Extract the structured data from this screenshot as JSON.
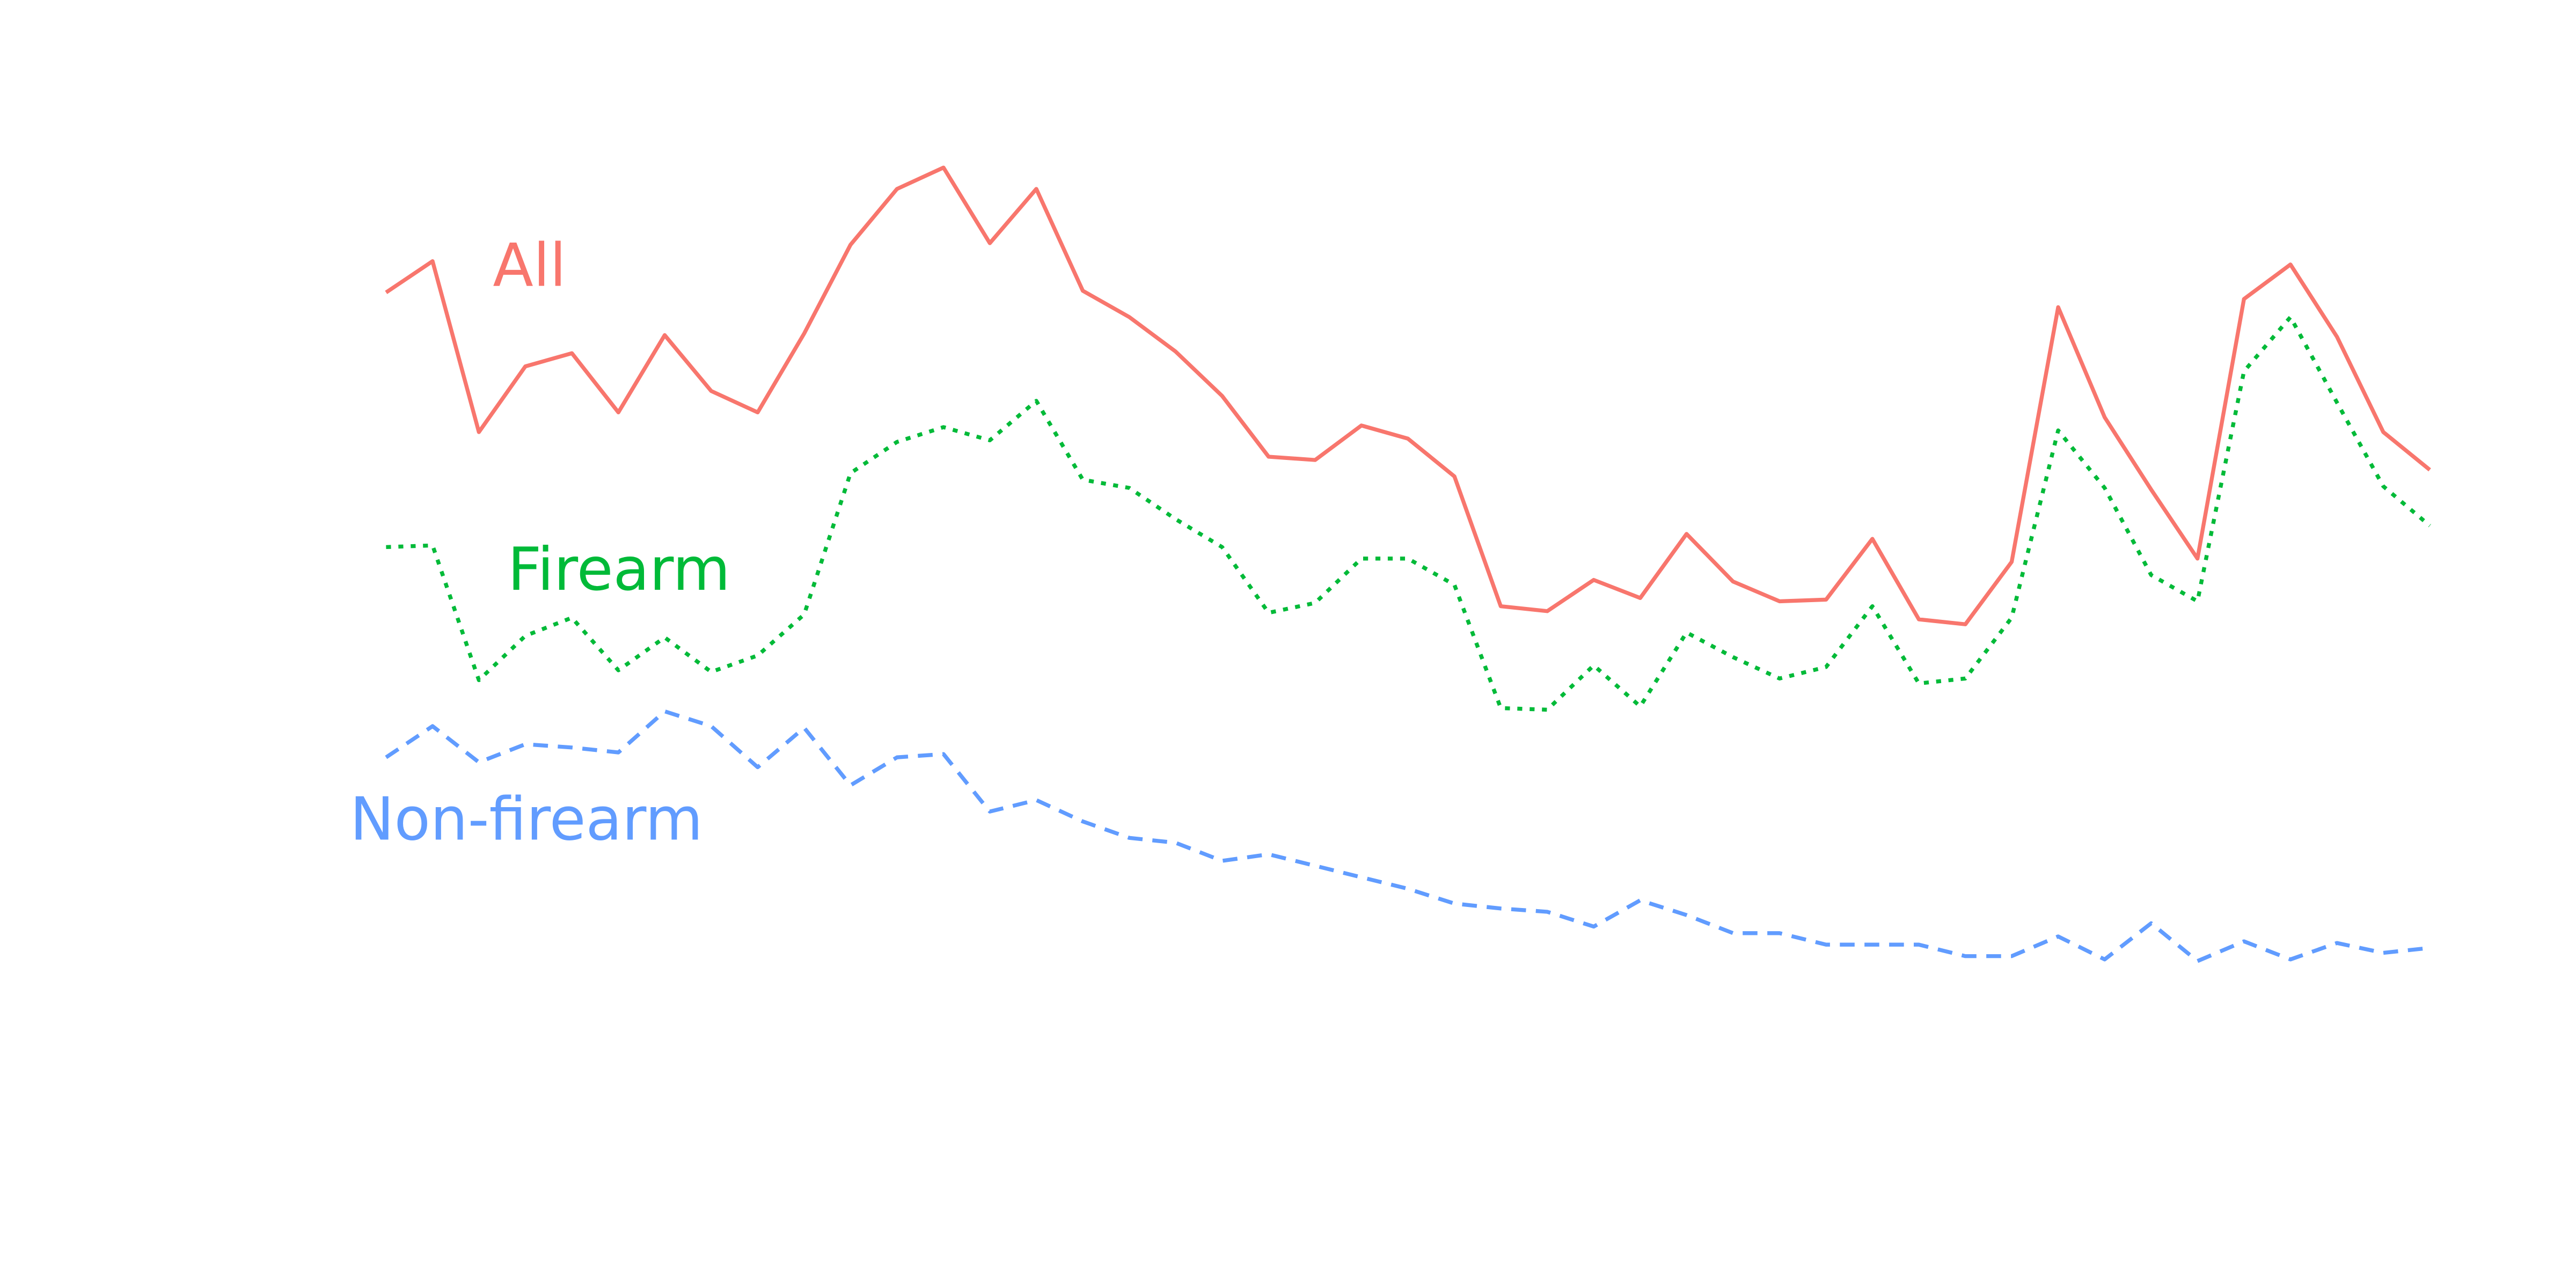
{
  "chart_data": {
    "type": "line",
    "title": "",
    "xlabel": "",
    "ylabel": "",
    "x": [
      1,
      2,
      3,
      4,
      5,
      6,
      7,
      8,
      9,
      10,
      11,
      12,
      13,
      14,
      15,
      16,
      17,
      18,
      19,
      20,
      21,
      22,
      23,
      24,
      25,
      26,
      27,
      28,
      29,
      30,
      31,
      32,
      33,
      34,
      35,
      36,
      37,
      38,
      39,
      40,
      41,
      42,
      43,
      44,
      45
    ],
    "xlim": [
      1,
      45
    ],
    "ylim": [
      0,
      70
    ],
    "grid": false,
    "legend": "inline labels",
    "series": [
      {
        "name": "All",
        "color": "#F8766D",
        "dash": "solid",
        "values": [
          52.2,
          54.1,
          43.7,
          47.7,
          48.5,
          44.9,
          49.6,
          46.2,
          44.9,
          49.7,
          55.1,
          58.5,
          59.8,
          55.2,
          58.5,
          52.3,
          50.7,
          48.6,
          45.9,
          42.2,
          42.0,
          44.1,
          43.3,
          41.0,
          33.1,
          32.8,
          34.7,
          33.6,
          37.5,
          34.6,
          33.4,
          33.5,
          37.2,
          32.3,
          32.0,
          35.8,
          51.3,
          44.6,
          40.2,
          36.0,
          51.8,
          53.9,
          49.5,
          43.7,
          41.4
        ]
      },
      {
        "name": "Firearm",
        "color": "#00BA38",
        "dash": "dotted",
        "values": [
          36.7,
          36.8,
          28.6,
          31.3,
          32.4,
          29.2,
          31.2,
          29.1,
          30.1,
          32.6,
          41.2,
          43.1,
          44.0,
          43.2,
          45.6,
          40.8,
          40.3,
          38.4,
          36.7,
          32.7,
          33.3,
          36.0,
          36.0,
          34.4,
          26.9,
          26.8,
          29.5,
          27.0,
          31.5,
          30.0,
          28.7,
          29.4,
          33.1,
          28.4,
          28.7,
          32.4,
          43.8,
          40.3,
          35.0,
          33.4,
          47.4,
          50.7,
          45.5,
          40.4,
          38.0
        ]
      },
      {
        "name": "Non-firearm",
        "color": "#619CFF",
        "dash": "dashed",
        "values": [
          23.9,
          25.8,
          23.6,
          24.7,
          24.5,
          24.2,
          26.7,
          25.8,
          23.3,
          25.7,
          22.2,
          23.9,
          24.1,
          20.6,
          21.3,
          20.0,
          19.0,
          18.7,
          17.6,
          18.0,
          17.3,
          16.6,
          15.9,
          15.0,
          14.7,
          14.5,
          13.6,
          15.2,
          14.3,
          13.2,
          13.2,
          12.5,
          12.5,
          12.5,
          11.8,
          11.8,
          13.0,
          11.6,
          13.8,
          11.5,
          12.7,
          11.6,
          12.6,
          12.0,
          12.3
        ]
      }
    ]
  }
}
